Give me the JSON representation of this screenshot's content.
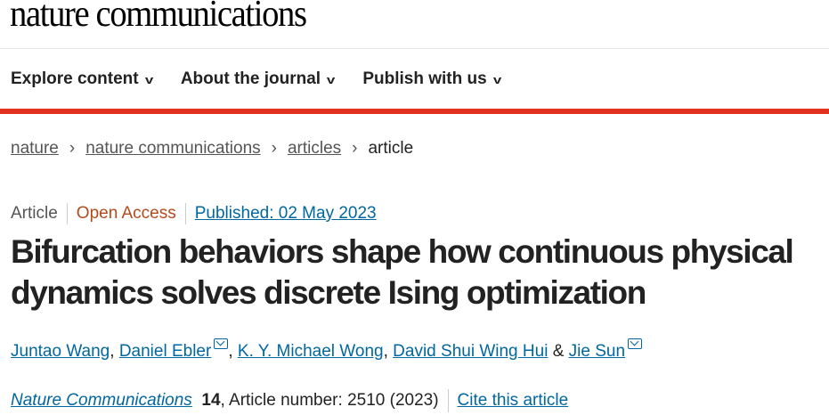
{
  "site": {
    "logo": "nature communications"
  },
  "nav": [
    {
      "label": "Explore content"
    },
    {
      "label": "About the journal"
    },
    {
      "label": "Publish with us"
    }
  ],
  "breadcrumb": [
    "nature",
    "nature communications",
    "articles",
    "article"
  ],
  "meta": {
    "type": "Article",
    "access": "Open Access",
    "published": "Published: 02 May 2023"
  },
  "title": "Bifurcation behaviors shape how continuous physical dynamics solves discrete Ising optimization",
  "authors": [
    "Juntao Wang",
    "Daniel Ebler",
    "K. Y. Michael Wong",
    "David Shui Wing Hui",
    "Jie Sun"
  ],
  "citation": {
    "journal": "Nature Communications",
    "volume": "14",
    "rest": ", Article number: 2510 (2023)",
    "cite_label": "Cite this article"
  },
  "colors": {
    "accent": "#e2321f",
    "link": "#0067a0",
    "open_access": "#b54a1c"
  }
}
